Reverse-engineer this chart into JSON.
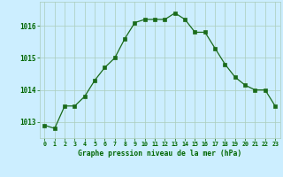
{
  "x": [
    0,
    1,
    2,
    3,
    4,
    5,
    6,
    7,
    8,
    9,
    10,
    11,
    12,
    13,
    14,
    15,
    16,
    17,
    18,
    19,
    20,
    21,
    22,
    23
  ],
  "y": [
    1012.9,
    1012.8,
    1013.5,
    1013.5,
    1013.8,
    1014.3,
    1014.7,
    1015.0,
    1015.6,
    1016.1,
    1016.2,
    1016.2,
    1016.2,
    1016.4,
    1016.2,
    1015.8,
    1015.8,
    1015.3,
    1014.8,
    1014.4,
    1014.15,
    1014.0,
    1014.0,
    1013.5
  ],
  "line_color": "#1a6b1a",
  "marker": "s",
  "marker_size": 2.5,
  "bg_color": "#cceeff",
  "grid_color": "#aaccbb",
  "xlabel": "Graphe pression niveau de la mer (hPa)",
  "xlabel_color": "#006600",
  "tick_color": "#006600",
  "ylim": [
    1012.5,
    1016.75
  ],
  "yticks": [
    1013,
    1014,
    1015,
    1016
  ],
  "xlim": [
    -0.5,
    23.5
  ],
  "xticks": [
    0,
    1,
    2,
    3,
    4,
    5,
    6,
    7,
    8,
    9,
    10,
    11,
    12,
    13,
    14,
    15,
    16,
    17,
    18,
    19,
    20,
    21,
    22,
    23
  ],
  "xtick_labels": [
    "0",
    "1",
    "2",
    "3",
    "4",
    "5",
    "6",
    "7",
    "8",
    "9",
    "10",
    "11",
    "12",
    "13",
    "14",
    "15",
    "16",
    "17",
    "18",
    "19",
    "20",
    "21",
    "22",
    "23"
  ]
}
